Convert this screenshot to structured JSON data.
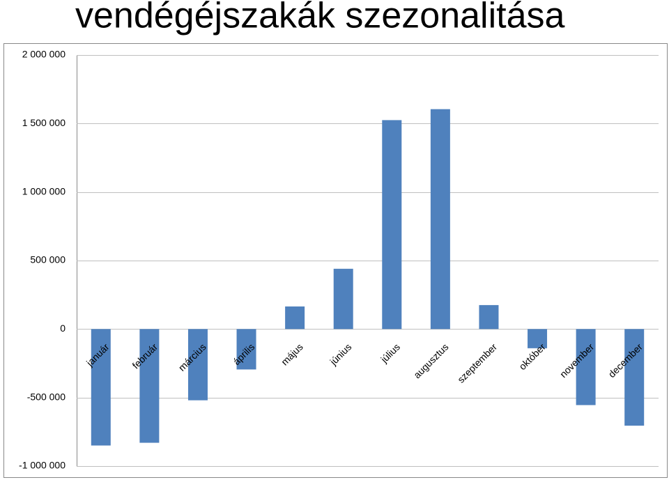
{
  "chart_data": {
    "type": "bar",
    "title": "vendégéjszakák szezonalitása",
    "categories": [
      "január",
      "február",
      "március",
      "április",
      "május",
      "június",
      "július",
      "augusztus",
      "szeptember",
      "október",
      "november",
      "december"
    ],
    "values": [
      -850000,
      -830000,
      -520000,
      -295000,
      165000,
      440000,
      1525000,
      1605000,
      175000,
      -140000,
      -555000,
      -705000
    ],
    "color": "#4f81bd",
    "ylim": [
      -1000000,
      2000000
    ],
    "yticks": [
      {
        "value": -1000000,
        "label": "-1 000 000"
      },
      {
        "value": -500000,
        "label": "-500 000"
      },
      0,
      {
        "value": 500000,
        "label": "500 000"
      },
      {
        "value": 1000000,
        "label": "1 000 000"
      },
      {
        "value": 1500000,
        "label": "1 500 000"
      },
      {
        "value": 2000000,
        "label": "2 000 000"
      }
    ],
    "grid": true
  }
}
